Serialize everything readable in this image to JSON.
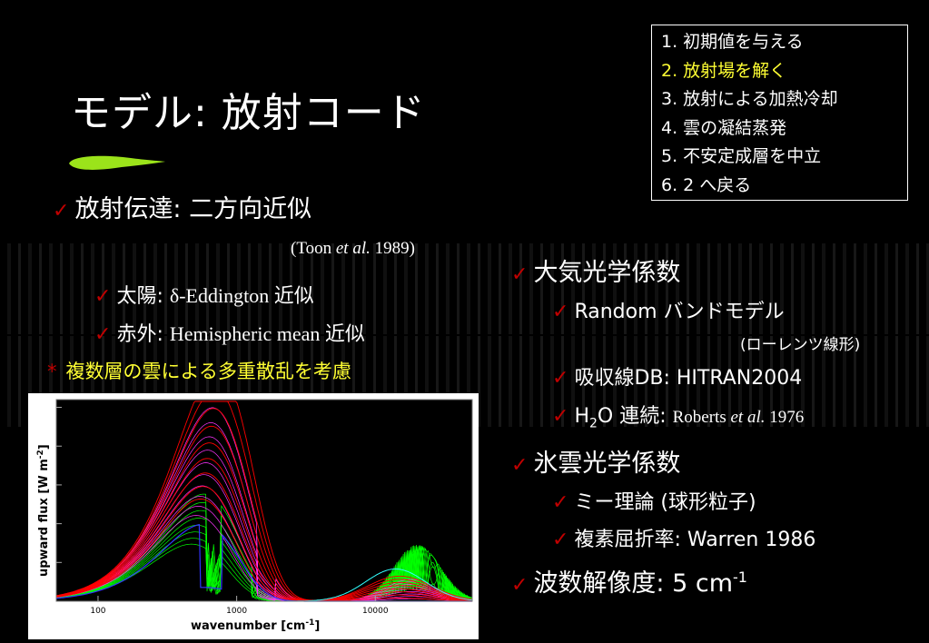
{
  "slide": {
    "title": "モデル: 放射コード",
    "steps": [
      "1. 初期値を与える",
      "2. 放射場を解く",
      "3. 放射による加熱冷却",
      "4. 雲の凝結蒸発",
      "5. 不安定成層を中立",
      "6. 2 へ戻る"
    ],
    "highlight_color": "#ffff33",
    "left": {
      "heading": "放射伝達: 二方向近似",
      "reference_prefix": "(Toon ",
      "reference_etal": "et al.",
      "reference_year": " 1989)",
      "solar_prefix": "太陽: ",
      "solar_text": "δ-Eddington 近似",
      "ir_prefix": "赤外: ",
      "ir_text": "Hemispheric mean 近似",
      "note_mark": "*",
      "note_text": "複数層の雲による多重散乱を考慮"
    },
    "right": {
      "atmos_heading": "大気光学係数",
      "band_model": "Random バンドモデル",
      "band_model_note": "(ローレンツ線形)",
      "absorption_db": "吸収線DB: HITRAN2004",
      "h2o_prefix": "H",
      "h2o_sub": "2",
      "h2o_suffix": "O 連続: ",
      "h2o_ref": "Roberts ",
      "h2o_etal": "et al.",
      "h2o_year": " 1976",
      "ice_heading": "氷雲光学係数",
      "mie": "ミー理論 (球形粒子)",
      "refractive": "複素屈折率: Warren 1986",
      "resolution_prefix": "波数解像度: 5 cm",
      "resolution_sup": "-1"
    }
  },
  "chart_data": {
    "type": "line",
    "xlabel_main": "wavenumber [cm",
    "xlabel_sup": "-1",
    "xlabel_end": "]",
    "ylabel_main": "upward flux [W m",
    "ylabel_sup": "-2",
    "ylabel_end": "]",
    "x_scale": "log",
    "xlim": [
      50,
      50000
    ],
    "x_ticks": [
      "100",
      "1000",
      "10000"
    ],
    "series_colors": [
      "#ff0000",
      "#ff33ff",
      "#00ff00",
      "#3333ff",
      "#33ffff"
    ]
  }
}
